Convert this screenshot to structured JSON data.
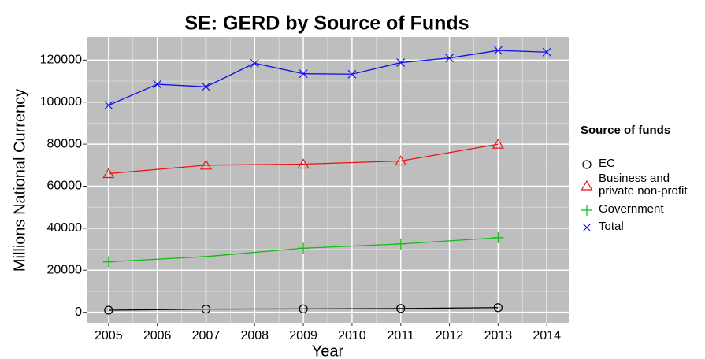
{
  "chart_data": {
    "type": "line",
    "title": "SE: GERD by Source of Funds",
    "xlabel": "Year",
    "ylabel": "Millions National Currency",
    "legend_title": "Source of funds",
    "legend_position": "right",
    "xlim": [
      2004.55,
      2014.45
    ],
    "xticks": [
      2005,
      2006,
      2007,
      2008,
      2009,
      2010,
      2011,
      2012,
      2013,
      2014
    ],
    "ylim": [
      -5000,
      131000
    ],
    "yticks": [
      0,
      20000,
      40000,
      60000,
      80000,
      100000,
      120000
    ],
    "grid": true,
    "series": [
      {
        "name": "EC",
        "color": "#000000",
        "marker": "circle",
        "x": [
          2005,
          2007,
          2009,
          2011,
          2013
        ],
        "values": [
          1000,
          1500,
          1600,
          1800,
          2200
        ]
      },
      {
        "name": "Business and\nprivate non-profit",
        "color": "#ee1111",
        "marker": "triangle",
        "x": [
          2005,
          2007,
          2009,
          2011,
          2013
        ],
        "values": [
          66000,
          70000,
          70500,
          72000,
          80000
        ]
      },
      {
        "name": "Government",
        "color": "#11bb11",
        "marker": "plus",
        "x": [
          2005,
          2007,
          2009,
          2011,
          2013
        ],
        "values": [
          24000,
          26500,
          30500,
          32500,
          35500
        ]
      },
      {
        "name": "Total",
        "color": "#1111ee",
        "marker": "cross",
        "x": [
          2005,
          2006,
          2007,
          2008,
          2009,
          2010,
          2011,
          2012,
          2013,
          2014
        ],
        "values": [
          98500,
          108500,
          107300,
          118500,
          113500,
          113300,
          118800,
          121000,
          124600,
          123800
        ]
      }
    ]
  }
}
